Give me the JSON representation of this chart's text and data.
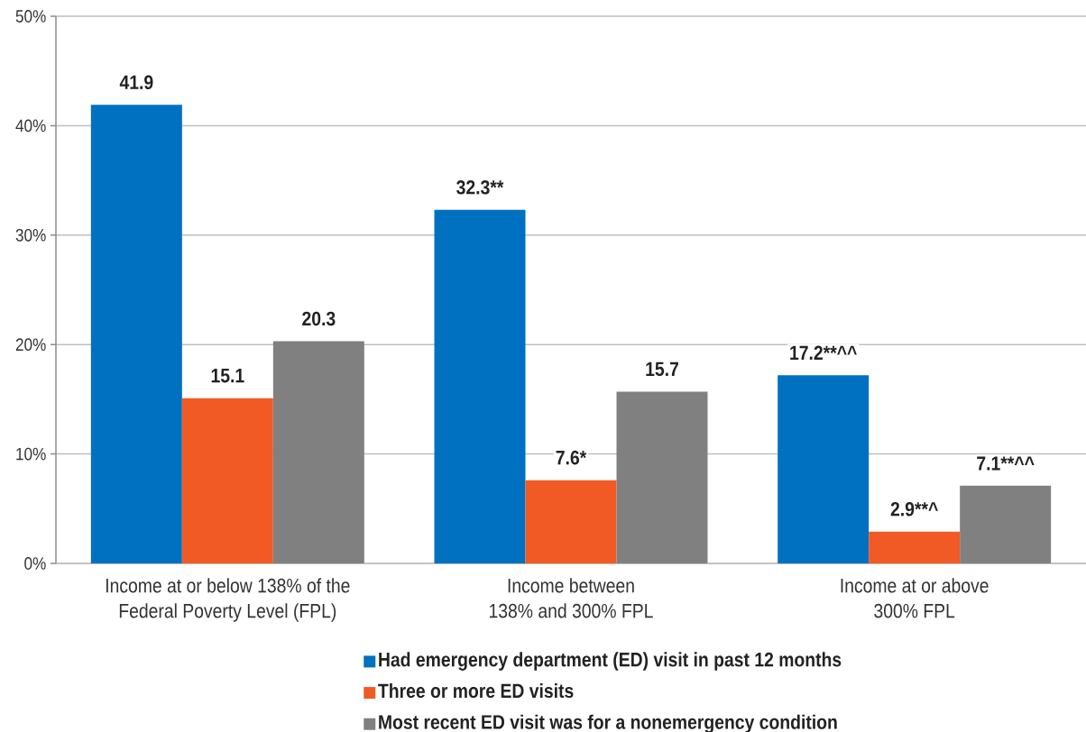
{
  "chart_data": {
    "type": "bar",
    "categories": [
      "Income at or below 138% of the Federal Poverty Level (FPL)",
      "Income between 138% and 300% FPL",
      "Income at or above 300% FPL"
    ],
    "series": [
      {
        "name": "Had emergency department (ED) visit in past 12 months",
        "color": "#0070c0",
        "values": [
          41.9,
          32.3,
          17.2
        ],
        "value_labels": [
          "41.9",
          "32.3**",
          "17.2**^^"
        ]
      },
      {
        "name": "Three or more ED visits",
        "color": "#f15a24",
        "values": [
          15.1,
          7.6,
          2.9
        ],
        "value_labels": [
          "15.1",
          "7.6*",
          "2.9**^"
        ]
      },
      {
        "name": "Most recent ED visit was for a nonemergency condition",
        "color": "#808080",
        "values": [
          20.3,
          15.7,
          7.1
        ],
        "value_labels": [
          "20.3",
          "15.7",
          "7.1**^^"
        ]
      }
    ],
    "ylim": [
      0,
      50
    ],
    "yticks": [
      {
        "value": 0,
        "label": "0%"
      },
      {
        "value": 10,
        "label": "10%"
      },
      {
        "value": 20,
        "label": "20%"
      },
      {
        "value": 30,
        "label": "30%"
      },
      {
        "value": 40,
        "label": "40%"
      },
      {
        "value": 50,
        "label": "50%"
      }
    ],
    "grid": "y",
    "legend": "bottom"
  }
}
